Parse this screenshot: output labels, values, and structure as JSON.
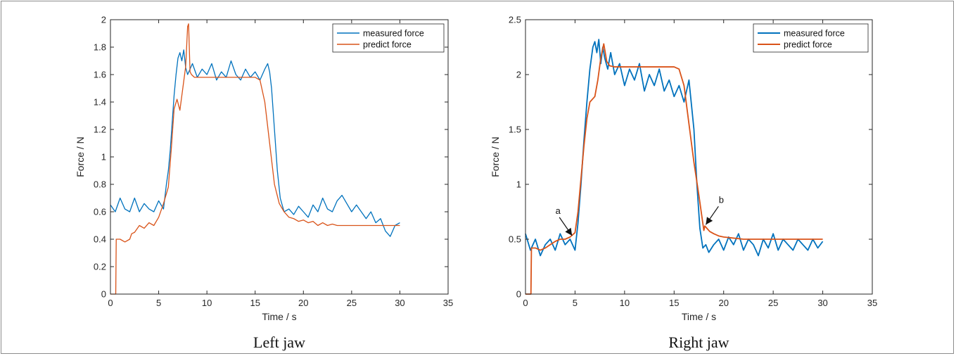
{
  "chart_data": [
    {
      "type": "line",
      "caption": "Left jaw",
      "xlabel": "Time / s",
      "ylabel": "Force / N",
      "xlim": [
        0,
        35
      ],
      "ylim": [
        0,
        2
      ],
      "xticks": [
        0,
        5,
        10,
        15,
        20,
        25,
        30,
        35
      ],
      "yticks": [
        0,
        0.2,
        0.4,
        0.6,
        0.8,
        1,
        1.2,
        1.4,
        1.6,
        1.8,
        2
      ],
      "legend_position": "top-right",
      "grid": false,
      "series": [
        {
          "name": "measured force",
          "color": "#0072BD",
          "x": [
            0,
            0.5,
            1,
            1.5,
            2,
            2.5,
            3,
            3.5,
            4,
            4.5,
            5,
            5.5,
            5.8,
            6,
            6.2,
            6.4,
            6.6,
            6.8,
            7,
            7.2,
            7.4,
            7.6,
            7.8,
            8,
            8.5,
            9,
            9.5,
            10,
            10.5,
            11,
            11.5,
            12,
            12.5,
            13,
            13.5,
            14,
            14.5,
            15,
            15.5,
            16,
            16.3,
            16.5,
            16.7,
            17,
            17.3,
            17.6,
            18,
            18.5,
            19,
            19.5,
            20,
            20.5,
            21,
            21.5,
            22,
            22.5,
            23,
            23.5,
            24,
            24.5,
            25,
            25.5,
            26,
            26.5,
            27,
            27.5,
            28,
            28.5,
            29,
            29.5,
            30
          ],
          "y": [
            0.65,
            0.6,
            0.7,
            0.62,
            0.6,
            0.7,
            0.6,
            0.66,
            0.62,
            0.6,
            0.68,
            0.62,
            0.8,
            0.9,
            1.05,
            1.25,
            1.45,
            1.6,
            1.72,
            1.76,
            1.7,
            1.78,
            1.65,
            1.6,
            1.68,
            1.58,
            1.64,
            1.6,
            1.68,
            1.56,
            1.62,
            1.58,
            1.7,
            1.6,
            1.56,
            1.64,
            1.58,
            1.62,
            1.56,
            1.64,
            1.68,
            1.62,
            1.5,
            1.2,
            0.9,
            0.7,
            0.6,
            0.62,
            0.58,
            0.64,
            0.6,
            0.56,
            0.65,
            0.6,
            0.7,
            0.62,
            0.6,
            0.68,
            0.72,
            0.66,
            0.6,
            0.65,
            0.6,
            0.55,
            0.6,
            0.52,
            0.55,
            0.46,
            0.42,
            0.5,
            0.52
          ]
        },
        {
          "name": "predict force",
          "color": "#D95319",
          "x": [
            0,
            0.55,
            0.6,
            1,
            1.5,
            2,
            2.2,
            2.5,
            3,
            3.5,
            4,
            4.5,
            5,
            5.5,
            6,
            6.3,
            6.6,
            6.9,
            7.2,
            7.5,
            7.8,
            8,
            8.1,
            8.25,
            8.4,
            8.7,
            9,
            10,
            11,
            12,
            13,
            14,
            15,
            15.5,
            16,
            16.5,
            17,
            17.5,
            18,
            18.5,
            19,
            19.5,
            20,
            20.5,
            21,
            21.5,
            22,
            22.5,
            23,
            23.5,
            24,
            25,
            26,
            27,
            28,
            29,
            30
          ],
          "y": [
            0,
            0,
            0.4,
            0.4,
            0.38,
            0.4,
            0.44,
            0.45,
            0.5,
            0.48,
            0.52,
            0.5,
            0.56,
            0.66,
            0.78,
            1.05,
            1.35,
            1.42,
            1.34,
            1.5,
            1.66,
            1.95,
            1.97,
            1.62,
            1.6,
            1.58,
            1.58,
            1.58,
            1.58,
            1.58,
            1.58,
            1.58,
            1.58,
            1.56,
            1.4,
            1.1,
            0.8,
            0.66,
            0.6,
            0.56,
            0.55,
            0.53,
            0.54,
            0.52,
            0.53,
            0.5,
            0.52,
            0.5,
            0.51,
            0.5,
            0.5,
            0.5,
            0.5,
            0.5,
            0.5,
            0.5,
            0.5
          ]
        }
      ]
    },
    {
      "type": "line",
      "caption": "Right jaw",
      "xlabel": "Time / s",
      "ylabel": "Force / N",
      "xlim": [
        0,
        35
      ],
      "ylim": [
        0,
        2.5
      ],
      "xticks": [
        0,
        5,
        10,
        15,
        20,
        25,
        30,
        35
      ],
      "yticks": [
        0,
        0.5,
        1,
        1.5,
        2,
        2.5
      ],
      "legend_position": "top-right",
      "grid": false,
      "annotations": [
        {
          "text": "a",
          "x": 4.7,
          "y": 0.52
        },
        {
          "text": "b",
          "x": 18.2,
          "y": 0.62
        }
      ],
      "series": [
        {
          "name": "measured force",
          "color": "#0072BD",
          "x": [
            0,
            0.5,
            1,
            1.5,
            2,
            2.5,
            3,
            3.5,
            4,
            4.5,
            5,
            5.3,
            5.6,
            5.9,
            6.2,
            6.5,
            6.8,
            7,
            7.2,
            7.4,
            7.6,
            7.8,
            8,
            8.3,
            8.6,
            9,
            9.5,
            10,
            10.5,
            11,
            11.5,
            12,
            12.5,
            13,
            13.5,
            14,
            14.5,
            15,
            15.5,
            16,
            16.5,
            17,
            17.3,
            17.6,
            17.9,
            18.2,
            18.5,
            19,
            19.5,
            20,
            20.5,
            21,
            21.5,
            22,
            22.5,
            23,
            23.5,
            24,
            24.5,
            25,
            25.5,
            26,
            26.5,
            27,
            27.5,
            28,
            28.5,
            29,
            29.5,
            30
          ],
          "y": [
            0.55,
            0.4,
            0.5,
            0.35,
            0.45,
            0.5,
            0.4,
            0.55,
            0.45,
            0.5,
            0.4,
            0.65,
            1.0,
            1.4,
            1.75,
            2.05,
            2.25,
            2.3,
            2.2,
            2.32,
            2.1,
            2.25,
            2.15,
            2.05,
            2.2,
            2.0,
            2.1,
            1.9,
            2.05,
            1.95,
            2.1,
            1.85,
            2.0,
            1.9,
            2.05,
            1.85,
            1.95,
            1.8,
            1.9,
            1.75,
            1.95,
            1.5,
            1.0,
            0.6,
            0.42,
            0.45,
            0.38,
            0.45,
            0.5,
            0.4,
            0.52,
            0.45,
            0.55,
            0.4,
            0.5,
            0.45,
            0.35,
            0.5,
            0.42,
            0.55,
            0.4,
            0.5,
            0.45,
            0.4,
            0.5,
            0.45,
            0.4,
            0.5,
            0.42,
            0.48
          ]
        },
        {
          "name": "predict force",
          "color": "#D95319",
          "x": [
            0,
            0.55,
            0.6,
            1,
            1.5,
            2,
            2.5,
            3,
            3.5,
            4,
            4.5,
            5,
            5.3,
            5.6,
            5.9,
            6.2,
            6.5,
            6.8,
            7,
            7.3,
            7.6,
            7.9,
            8.2,
            8.5,
            9,
            10,
            11,
            12,
            13,
            14,
            15,
            15.5,
            16,
            16.5,
            17,
            17.5,
            18,
            18.1,
            18.3,
            18.6,
            19,
            19.5,
            20,
            21,
            22,
            23,
            24,
            25,
            26,
            27,
            28,
            29,
            30
          ],
          "y": [
            0,
            0,
            0.42,
            0.42,
            0.4,
            0.42,
            0.45,
            0.48,
            0.5,
            0.5,
            0.52,
            0.56,
            0.75,
            1.05,
            1.35,
            1.6,
            1.75,
            1.78,
            1.8,
            1.95,
            2.15,
            2.28,
            2.12,
            2.08,
            2.07,
            2.07,
            2.07,
            2.07,
            2.07,
            2.07,
            2.07,
            2.05,
            1.9,
            1.55,
            1.2,
            0.9,
            0.58,
            0.62,
            0.6,
            0.57,
            0.55,
            0.53,
            0.52,
            0.51,
            0.5,
            0.5,
            0.5,
            0.5,
            0.5,
            0.5,
            0.5,
            0.5,
            0.5
          ]
        }
      ]
    }
  ]
}
